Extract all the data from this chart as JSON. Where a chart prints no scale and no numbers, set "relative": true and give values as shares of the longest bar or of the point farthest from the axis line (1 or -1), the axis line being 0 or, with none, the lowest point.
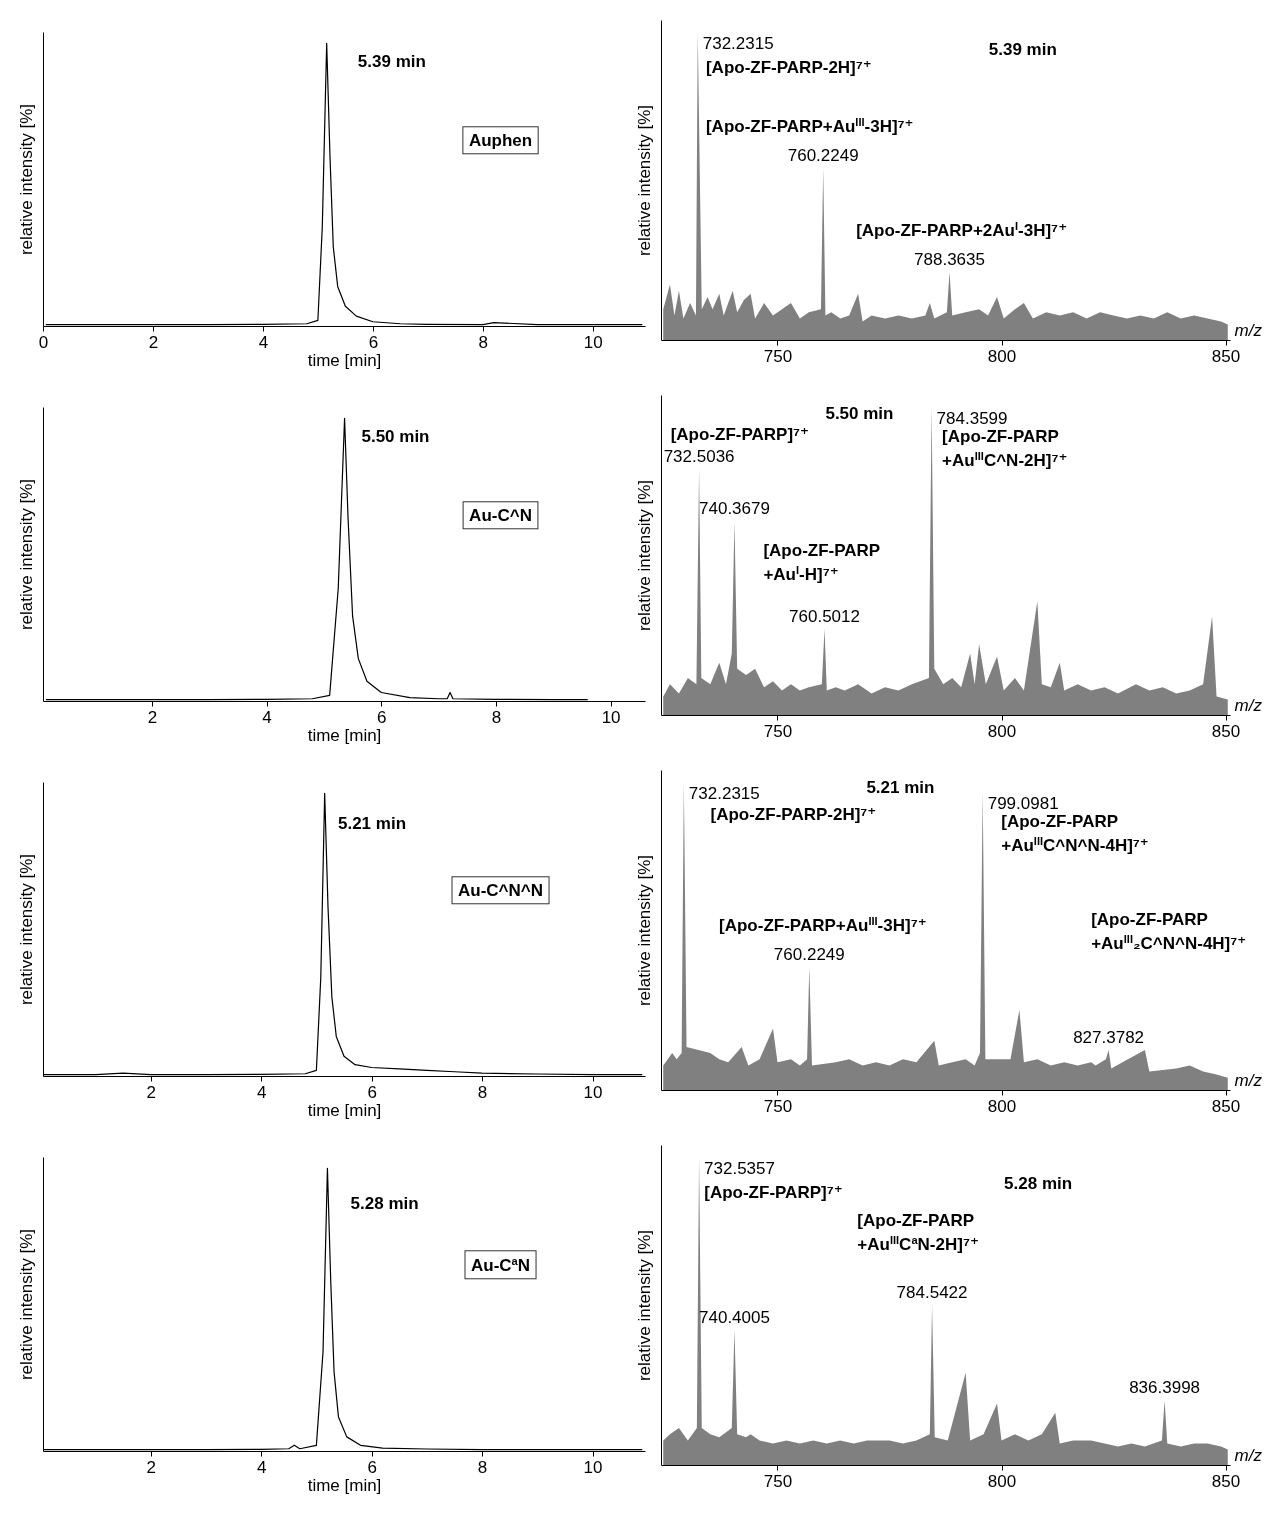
{
  "chart_data": [
    {
      "type": "line",
      "xlabel": "time [min]",
      "ylabel": "relative intensity [%]",
      "relative": true,
      "xlim": [
        0,
        10.95
      ],
      "xticks": [
        0,
        2,
        4,
        6,
        8,
        10
      ],
      "series": [
        {
          "color": "#000000",
          "x": [
            0.05,
            1,
            2,
            3,
            4,
            4.8,
            5.0,
            5.08,
            5.16,
            5.22,
            5.28,
            5.36,
            5.5,
            5.7,
            6,
            6.5,
            7,
            8,
            8.2,
            9,
            10,
            10.9
          ],
          "values": [
            0.005,
            0.005,
            0.005,
            0.005,
            0.006,
            0.008,
            0.02,
            0.35,
            1.0,
            0.6,
            0.28,
            0.14,
            0.07,
            0.035,
            0.015,
            0.008,
            0.006,
            0.005,
            0.012,
            0.005,
            0.005,
            0.005
          ]
        }
      ],
      "annotations": [
        "5.39 min",
        "Auphen"
      ]
    },
    {
      "type": "area",
      "xlabel": "m/z",
      "ylabel": "relative intensity [%]",
      "relative": true,
      "xlim": [
        724,
        851
      ],
      "xticks": [
        750,
        800,
        850
      ],
      "series": [
        {
          "color": "#808080",
          "x": [
            724.5,
            726,
            727,
            728,
            729,
            730.5,
            731.8,
            732.2,
            733.1,
            734.4,
            735.5,
            737,
            738,
            740,
            741,
            742.5,
            744,
            745,
            747,
            749,
            751,
            753,
            755,
            757,
            759.7,
            760.2,
            760.7,
            762,
            764,
            766,
            768,
            769,
            771,
            774,
            777,
            780,
            783,
            784,
            785,
            787.8,
            788.4,
            789,
            792,
            795,
            797,
            799,
            800.5,
            803,
            805,
            807,
            810,
            813,
            816,
            819,
            822,
            825,
            828,
            831,
            834,
            837,
            840,
            843,
            846,
            849,
            850.5
          ],
          "values": [
            0.1,
            0.18,
            0.08,
            0.16,
            0.07,
            0.12,
            0.08,
            1.0,
            0.1,
            0.14,
            0.1,
            0.15,
            0.08,
            0.16,
            0.09,
            0.13,
            0.15,
            0.07,
            0.12,
            0.08,
            0.1,
            0.12,
            0.07,
            0.09,
            0.1,
            0.56,
            0.08,
            0.09,
            0.07,
            0.08,
            0.15,
            0.06,
            0.08,
            0.07,
            0.08,
            0.07,
            0.08,
            0.12,
            0.07,
            0.09,
            0.22,
            0.08,
            0.09,
            0.1,
            0.08,
            0.14,
            0.07,
            0.1,
            0.12,
            0.07,
            0.09,
            0.08,
            0.09,
            0.07,
            0.09,
            0.08,
            0.07,
            0.08,
            0.07,
            0.09,
            0.07,
            0.08,
            0.07,
            0.06,
            0.05
          ]
        }
      ],
      "annotations": [
        {
          "text": "732.2315",
          "x": 732.2,
          "y": 1.0
        },
        "[Apo-ZF-PARP-2H]⁷⁺",
        "[Apo-ZF-PARP+Au$^{III}$-3H]⁷⁺",
        {
          "text": "760.2249",
          "x": 760.2,
          "y": 0.56
        },
        "[Apo-ZF-PARP+2Au$^{I}$-3H]⁷⁺",
        {
          "text": "788.3635",
          "x": 788.4,
          "y": 0.22
        },
        "5.39 min"
      ]
    },
    {
      "type": "line",
      "xlabel": "time [min]",
      "ylabel": "relative intensity [%]",
      "relative": true,
      "xlim": [
        0.1,
        10.6
      ],
      "xticks": [
        2,
        4,
        6,
        8,
        10
      ],
      "series": [
        {
          "color": "#000000",
          "x": [
            0.15,
            1,
            2,
            3,
            4,
            4.8,
            5.1,
            5.25,
            5.36,
            5.42,
            5.5,
            5.6,
            5.75,
            6,
            6.5,
            7,
            7.15,
            7.2,
            7.25,
            8,
            9,
            9.6
          ],
          "values": [
            0.005,
            0.005,
            0.005,
            0.005,
            0.006,
            0.008,
            0.02,
            0.4,
            1.0,
            0.65,
            0.3,
            0.15,
            0.07,
            0.03,
            0.012,
            0.008,
            0.008,
            0.03,
            0.008,
            0.006,
            0.005,
            0.005
          ]
        }
      ],
      "annotations": [
        "5.50 min",
        "Au-C^N"
      ]
    },
    {
      "type": "area",
      "xlabel": "m/z",
      "ylabel": "relative intensity [%]",
      "relative": true,
      "xlim": [
        724,
        851
      ],
      "xticks": [
        750,
        800,
        850
      ],
      "series": [
        {
          "color": "#808080",
          "x": [
            724.5,
            726,
            728,
            730,
            731.9,
            732.5,
            733,
            735,
            737,
            738.5,
            739.8,
            740.4,
            741,
            743,
            745,
            747,
            749,
            751,
            753,
            755,
            757,
            759.9,
            760.5,
            761,
            763,
            765,
            768,
            771,
            774,
            777,
            780,
            783.8,
            784.4,
            785,
            787,
            789,
            791,
            793,
            794,
            795,
            796.5,
            799,
            800.5,
            803,
            805,
            808,
            809,
            811,
            813,
            814,
            817,
            820,
            823,
            826,
            830,
            833,
            836,
            839,
            842,
            845,
            847,
            848,
            850.5
          ],
          "values": [
            0.06,
            0.1,
            0.07,
            0.12,
            0.1,
            0.8,
            0.12,
            0.1,
            0.17,
            0.1,
            0.2,
            0.63,
            0.15,
            0.13,
            0.15,
            0.09,
            0.11,
            0.08,
            0.1,
            0.08,
            0.09,
            0.1,
            0.28,
            0.08,
            0.09,
            0.08,
            0.1,
            0.07,
            0.09,
            0.08,
            0.1,
            0.12,
            1.0,
            0.15,
            0.1,
            0.12,
            0.09,
            0.2,
            0.1,
            0.23,
            0.1,
            0.19,
            0.08,
            0.12,
            0.08,
            0.37,
            0.1,
            0.09,
            0.17,
            0.08,
            0.1,
            0.08,
            0.09,
            0.07,
            0.1,
            0.08,
            0.09,
            0.07,
            0.08,
            0.1,
            0.32,
            0.06,
            0.05
          ]
        }
      ],
      "annotations": [
        "5.50 min",
        {
          "text": "784.3599",
          "x": 784.4,
          "y": 1.0
        },
        "[Apo-ZF-PARP\n+Au$^{III}$C^N-2H]⁷⁺",
        "[Apo-ZF-PARP]⁷⁺",
        {
          "text": "732.5036",
          "x": 732.5,
          "y": 0.8
        },
        {
          "text": "740.3679",
          "x": 740.4,
          "y": 0.63
        },
        "[Apo-ZF-PARP\n+Au$^{I}$-H]⁷⁺",
        {
          "text": "760.5012",
          "x": 760.5,
          "y": 0.28
        }
      ]
    },
    {
      "type": "line",
      "xlabel": "time [min]",
      "ylabel": "relative intensity [%]",
      "relative": true,
      "xlim": [
        0.05,
        10.95
      ],
      "xticks": [
        2,
        4,
        6,
        8,
        10
      ],
      "series": [
        {
          "color": "#000000",
          "x": [
            0.05,
            1,
            1.5,
            2,
            3,
            4,
            4.8,
            5.0,
            5.08,
            5.15,
            5.21,
            5.28,
            5.36,
            5.5,
            5.7,
            6,
            6.5,
            7,
            7.5,
            8,
            9,
            10,
            10.9
          ],
          "values": [
            0.005,
            0.005,
            0.01,
            0.005,
            0.005,
            0.006,
            0.008,
            0.02,
            0.35,
            1.0,
            0.6,
            0.28,
            0.14,
            0.07,
            0.04,
            0.03,
            0.025,
            0.02,
            0.015,
            0.01,
            0.007,
            0.005,
            0.005
          ]
        }
      ],
      "annotations": [
        "5.21 min",
        "Au-C^N^N"
      ]
    },
    {
      "type": "area",
      "xlabel": "m/z",
      "ylabel": "relative intensity [%]",
      "relative": true,
      "xlim": [
        724,
        851
      ],
      "xticks": [
        750,
        800,
        850
      ],
      "series": [
        {
          "color": "#808080",
          "x": [
            724.5,
            725.5,
            726.5,
            727.5,
            728.6,
            729.1,
            729.7,
            735,
            737,
            739,
            742,
            743.5,
            746,
            749,
            750,
            753,
            755,
            756.6,
            757.1,
            757.7,
            763,
            766,
            769,
            772,
            775,
            778,
            781,
            785,
            786,
            789,
            792,
            794,
            795.2,
            795.8,
            796.4,
            802,
            804,
            805,
            808,
            811,
            814,
            817,
            820,
            821,
            823.3,
            823.9,
            824.5,
            827,
            832,
            833,
            839,
            842,
            845,
            848,
            850.5
          ],
          "values": [
            0.08,
            0.1,
            0.12,
            0.1,
            0.12,
            1.0,
            0.14,
            0.12,
            0.1,
            0.09,
            0.14,
            0.08,
            0.1,
            0.2,
            0.09,
            0.1,
            0.08,
            0.1,
            0.4,
            0.08,
            0.09,
            0.1,
            0.08,
            0.09,
            0.08,
            0.1,
            0.09,
            0.16,
            0.08,
            0.09,
            0.1,
            0.08,
            0.12,
            0.97,
            0.1,
            0.1,
            0.26,
            0.09,
            0.1,
            0.08,
            0.09,
            0.08,
            0.09,
            0.08,
            0.1,
            0.13,
            0.07,
            0.09,
            0.13,
            0.06,
            0.07,
            0.08,
            0.06,
            0.05,
            0.04
          ]
        }
      ],
      "annotations": [
        {
          "text": "732.2315",
          "x": 729.1,
          "y": 1.0
        },
        "[Apo-ZF-PARP-2H]⁷⁺",
        "5.21 min",
        {
          "text": "799.0981",
          "x": 795.8,
          "y": 0.97
        },
        "[Apo-ZF-PARP\n+Au$^{III}$C^N^N-4H]⁷⁺",
        "[Apo-ZF-PARP+Au$^{III}$-3H]⁷⁺",
        {
          "text": "760.2249",
          "x": 757.1,
          "y": 0.4
        },
        "[Apo-ZF-PARP\n+Au$^{III}$₂C^N^N-4H]⁷⁺",
        {
          "text": "827.3782",
          "x": 823.9,
          "y": 0.13
        }
      ]
    },
    {
      "type": "line",
      "xlabel": "time [min]",
      "ylabel": "relative intensity [%]",
      "relative": true,
      "xlim": [
        0.05,
        10.95
      ],
      "xticks": [
        2,
        4,
        6,
        8,
        10
      ],
      "series": [
        {
          "color": "#000000",
          "x": [
            0.05,
            1,
            2,
            3,
            4,
            4.5,
            4.6,
            4.7,
            5.0,
            5.12,
            5.2,
            5.26,
            5.32,
            5.4,
            5.55,
            5.8,
            6.2,
            7,
            8,
            9,
            10,
            10.9
          ],
          "values": [
            0.005,
            0.005,
            0.005,
            0.005,
            0.006,
            0.008,
            0.02,
            0.008,
            0.02,
            0.35,
            1.0,
            0.6,
            0.28,
            0.12,
            0.05,
            0.02,
            0.01,
            0.007,
            0.005,
            0.005,
            0.005,
            0.005
          ]
        }
      ],
      "annotations": [
        "5.28 min",
        "Au-C$^{a}$N"
      ]
    },
    {
      "type": "area",
      "xlabel": "m/z",
      "ylabel": "relative intensity [%]",
      "relative": true,
      "xlim": [
        724,
        851
      ],
      "xticks": [
        750,
        800,
        850
      ],
      "series": [
        {
          "color": "#808080",
          "x": [
            724.5,
            726,
            728,
            730,
            732,
            732.5,
            733.1,
            735,
            737,
            739.8,
            740.4,
            741,
            743,
            744,
            746,
            749,
            752,
            755,
            758,
            761,
            764,
            767,
            770,
            775,
            778,
            781,
            784,
            784.5,
            785.1,
            788,
            792,
            793,
            796,
            799,
            800,
            803,
            806,
            809,
            812,
            813,
            816,
            820,
            823,
            826,
            829,
            832,
            835.8,
            836.4,
            837,
            840,
            843,
            846,
            849,
            850.5
          ],
          "values": [
            0.08,
            0.1,
            0.12,
            0.08,
            0.12,
            1.0,
            0.12,
            0.1,
            0.09,
            0.12,
            0.44,
            0.1,
            0.09,
            0.1,
            0.08,
            0.07,
            0.08,
            0.07,
            0.08,
            0.07,
            0.08,
            0.07,
            0.08,
            0.08,
            0.07,
            0.08,
            0.1,
            0.52,
            0.09,
            0.08,
            0.3,
            0.08,
            0.1,
            0.2,
            0.08,
            0.1,
            0.08,
            0.1,
            0.17,
            0.07,
            0.08,
            0.08,
            0.07,
            0.06,
            0.07,
            0.06,
            0.08,
            0.21,
            0.07,
            0.06,
            0.07,
            0.07,
            0.06,
            0.05
          ]
        }
      ],
      "annotations": [
        {
          "text": "732.5357",
          "x": 732.5,
          "y": 1.0
        },
        "[Apo-ZF-PARP]⁷⁺",
        "5.28 min",
        "[Apo-ZF-PARP\n+Au$^{III}$C$^{a}$N-2H]⁷⁺",
        {
          "text": "784.5422",
          "x": 784.5,
          "y": 0.52
        },
        {
          "text": "740.4005",
          "x": 740.4,
          "y": 0.44
        },
        {
          "text": "836.3998",
          "x": 836.4,
          "y": 0.21
        }
      ]
    }
  ]
}
